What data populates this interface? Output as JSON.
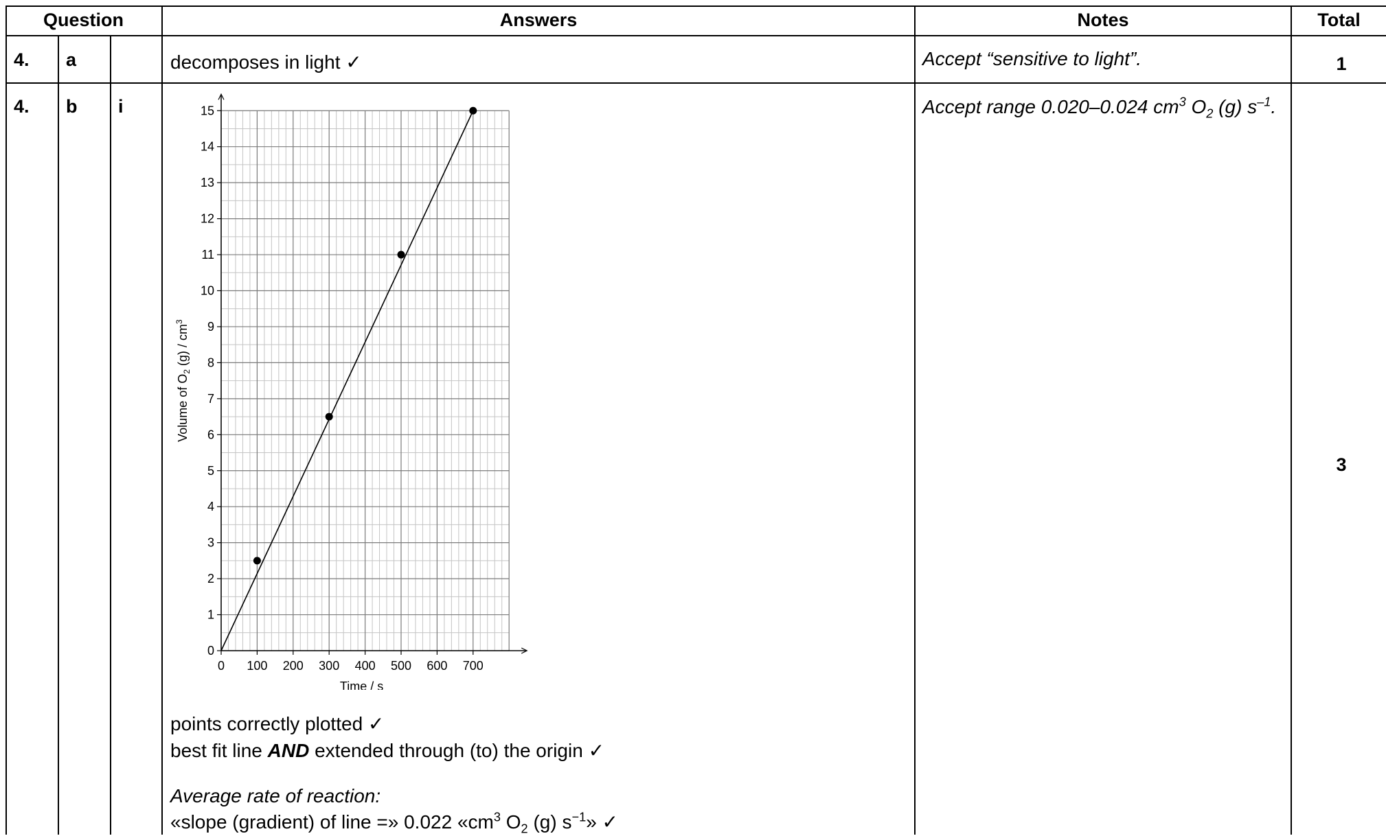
{
  "header": {
    "question": "Question",
    "answers": "Answers",
    "notes": "Notes",
    "total": "Total"
  },
  "rows": [
    {
      "q_num": "4.",
      "q_part": "a",
      "q_sub": "",
      "answer": "decomposes in light ✓",
      "note": "Accept “sensitive to light”.",
      "total": "1"
    },
    {
      "q_num": "4.",
      "q_part": "b",
      "q_sub": "i",
      "note_prefix": "Accept range 0.020–0.024 cm",
      "note_sup1": "3",
      "note_mid": " O",
      "note_sub": "2",
      "note_tail": " (g) s",
      "note_sup2": "–1",
      "note_end": ".",
      "answer_line1": "points correctly plotted ✓",
      "answer_line2_pre": "best fit line ",
      "answer_line2_bold": "AND",
      "answer_line2_post": " extended through (to) the origin ✓",
      "answer_line3": "Average rate of reaction:",
      "answer_line4_pre": "«slope (gradient) of line =» 0.022 «cm",
      "answer_line4_sup1": "3",
      "answer_line4_mid": " O",
      "answer_line4_sub": "2",
      "answer_line4_tail": " (g) s",
      "answer_line4_sup2": "−1",
      "answer_line4_end": "» ✓",
      "total": "3"
    }
  ],
  "chart_data": {
    "type": "scatter",
    "xlabel": "Time / s",
    "ylabel_pre": "Volume of O",
    "ylabel_sub": "2",
    "ylabel_post": " (g) / cm",
    "ylabel_sup": "3",
    "xlim": [
      0,
      800
    ],
    "ylim": [
      0,
      15
    ],
    "x_ticks": [
      0,
      100,
      200,
      300,
      400,
      500,
      600,
      700
    ],
    "y_ticks": [
      0,
      1,
      2,
      3,
      4,
      5,
      6,
      7,
      8,
      9,
      10,
      11,
      12,
      13,
      14,
      15
    ],
    "points": [
      {
        "x": 100,
        "y": 2.5
      },
      {
        "x": 300,
        "y": 6.5
      },
      {
        "x": 500,
        "y": 11
      },
      {
        "x": 700,
        "y": 15
      }
    ],
    "best_fit_line": [
      {
        "x": 0,
        "y": 0
      },
      {
        "x": 700,
        "y": 15
      }
    ],
    "grid": true
  }
}
